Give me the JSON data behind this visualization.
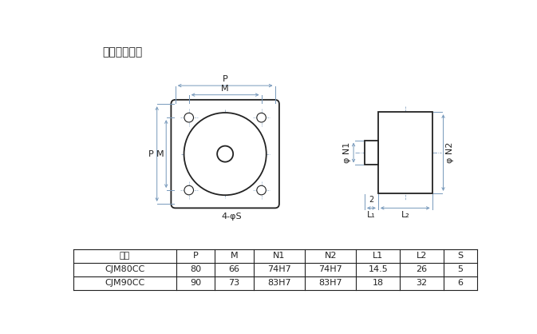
{
  "title": "中间级减速器",
  "table_headers": [
    "型号",
    "P",
    "M",
    "N1",
    "N2",
    "L1",
    "L2",
    "S"
  ],
  "table_rows": [
    [
      "CJM80CC",
      "80",
      "66",
      "74H7",
      "74H7",
      "14.5",
      "26",
      "5"
    ],
    [
      "CJM90CC",
      "90",
      "73",
      "83H7",
      "83H7",
      "18",
      "32",
      "6"
    ]
  ],
  "bg_color": "#f5f5f0",
  "line_color": "#222222",
  "dim_color": "#7799bb",
  "title_fontsize": 10,
  "label_fontsize": 8,
  "table_fontsize": 8
}
